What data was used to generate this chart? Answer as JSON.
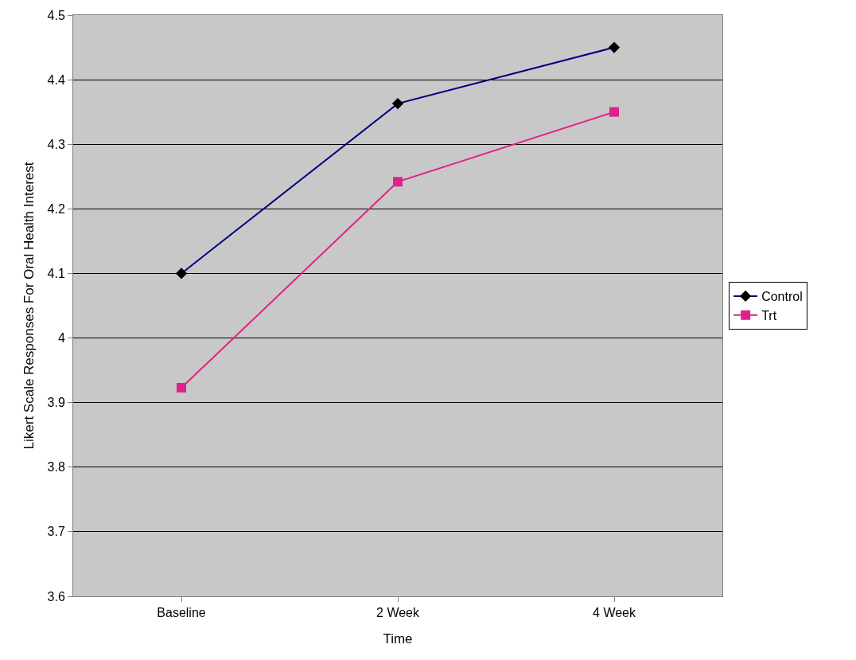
{
  "chart_data": {
    "type": "line",
    "xlabel": "Time",
    "ylabel": "Likert Scale Responses For Oral Health Interest",
    "categories": [
      "Baseline",
      "2 Week",
      "4 Week"
    ],
    "series": [
      {
        "name": "Control",
        "color": "#000080",
        "marker": "diamond",
        "values": [
          4.1,
          4.363,
          4.45
        ]
      },
      {
        "name": "Trt",
        "color": "#e0218a",
        "marker": "square",
        "values": [
          3.923,
          4.242,
          4.35
        ]
      }
    ],
    "ylim": [
      3.6,
      4.5
    ],
    "yticks": [
      3.6,
      3.7,
      3.8,
      3.9,
      4,
      4.1,
      4.2,
      4.3,
      4.4,
      4.5
    ],
    "grid": "y",
    "legend": "right",
    "line_style": "solid"
  }
}
